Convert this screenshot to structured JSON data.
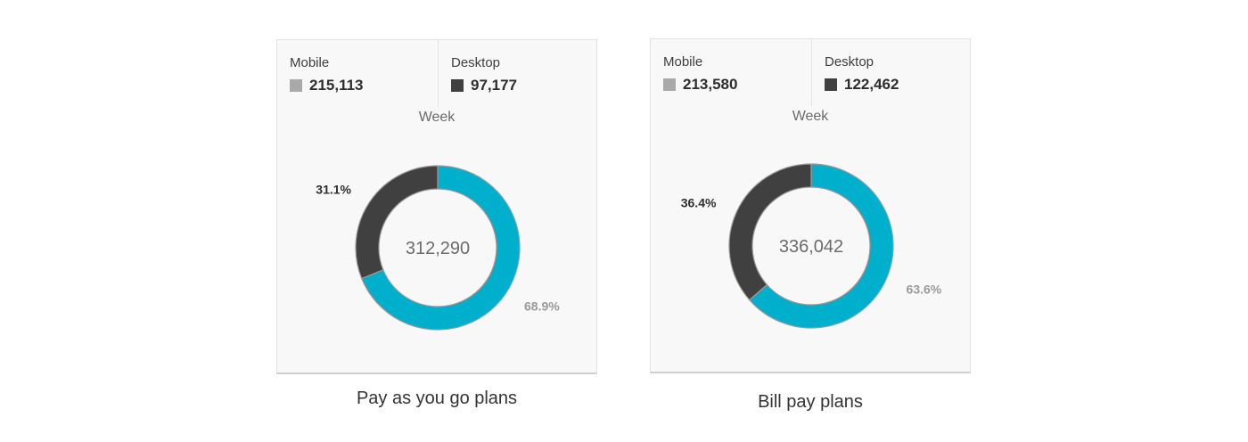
{
  "colors": {
    "mobile_swatch": "#a9a9a9",
    "desktop_swatch": "#404040",
    "mobile_slice": "#00afcc",
    "desktop_slice": "#404040",
    "mobile_pct_text": "#9a9a9a",
    "desktop_pct_text": "#2e2e2e"
  },
  "chart_data": [
    {
      "type": "pie",
      "donut": true,
      "title": "Pay as you go plans",
      "dimension_label": "Week",
      "total_label": "312,290",
      "slices": [
        {
          "name": "Mobile",
          "value": 215113,
          "value_label": "215,113",
          "percent_label": "68.9%"
        },
        {
          "name": "Desktop",
          "value": 97177,
          "value_label": "97,177",
          "percent_label": "31.1%"
        }
      ],
      "legend_position": "top"
    },
    {
      "type": "pie",
      "donut": true,
      "title": "Bill pay plans",
      "dimension_label": "Week",
      "total_label": "336,042",
      "slices": [
        {
          "name": "Mobile",
          "value": 213580,
          "value_label": "213,580",
          "percent_label": "63.6%"
        },
        {
          "name": "Desktop",
          "value": 122462,
          "value_label": "122,462",
          "percent_label": "36.4%"
        }
      ],
      "legend_position": "top"
    }
  ]
}
